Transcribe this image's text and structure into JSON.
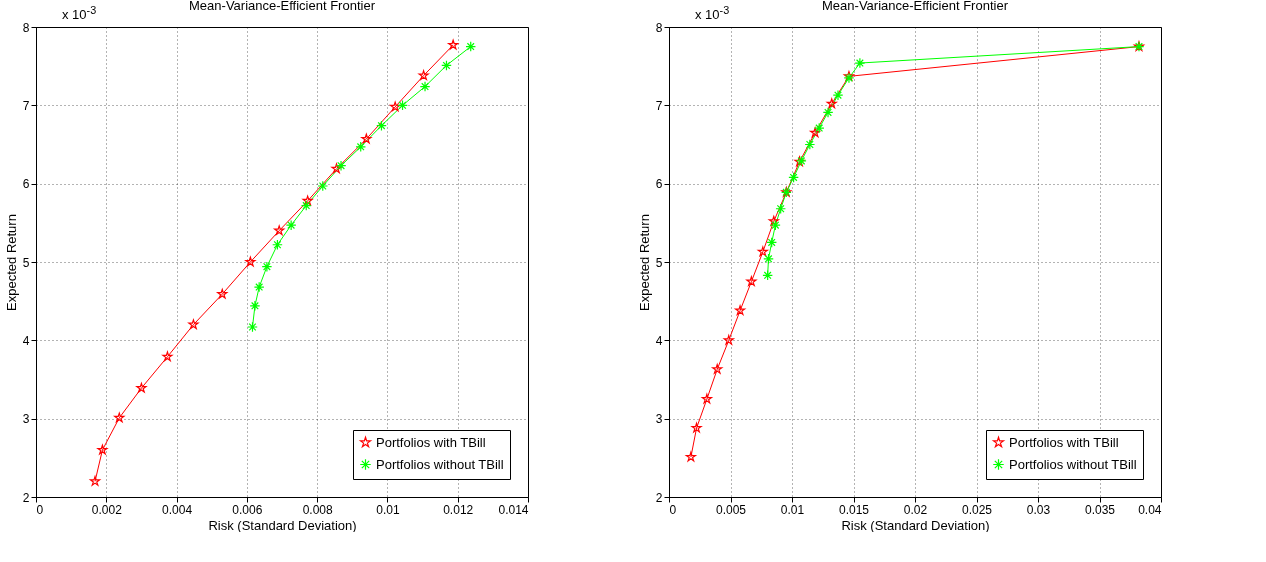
{
  "chart_data": [
    {
      "type": "line",
      "title": "Mean-Variance-Efficient Frontier",
      "xlabel": "Risk (Standard Deviation)",
      "ylabel": "Expected Return",
      "annotations": [
        "x 10$^{-3}$"
      ],
      "xlim": [
        0,
        0.014
      ],
      "xticks": [
        0,
        0.002,
        0.004,
        0.006,
        0.008,
        0.01,
        0.012,
        0.014
      ],
      "ylim": [
        2,
        8
      ],
      "yticks": [
        2,
        3,
        4,
        5,
        6,
        7,
        8
      ],
      "grid": true,
      "legend": "bottom right",
      "series": [
        {
          "name": "Portfolios with TBill",
          "color": "#ff0000",
          "marker": "star",
          "x": [
            0.00168,
            0.00189,
            0.00237,
            0.003,
            0.00374,
            0.00448,
            0.0053,
            0.0061,
            0.00692,
            0.00773,
            0.00855,
            0.0094,
            0.01022,
            0.01103,
            0.01187
          ],
          "values": [
            2.2,
            2.6,
            3.01,
            3.39,
            3.79,
            4.2,
            4.59,
            5.0,
            5.4,
            5.78,
            6.19,
            6.57,
            6.98,
            7.38,
            7.77
          ]
        },
        {
          "name": "Portfolios without TBill",
          "color": "#00ff00",
          "marker": "cross",
          "x": [
            0.00616,
            0.00623,
            0.00635,
            0.00657,
            0.00687,
            0.00726,
            0.00769,
            0.00816,
            0.00868,
            0.00924,
            0.00983,
            0.01043,
            0.01107,
            0.01168,
            0.01237
          ],
          "values": [
            4.17,
            4.44,
            4.68,
            4.94,
            5.22,
            5.47,
            5.72,
            5.97,
            6.23,
            6.47,
            6.74,
            7.0,
            7.24,
            7.51,
            7.75
          ]
        }
      ]
    },
    {
      "type": "line",
      "title": "Mean-Variance-Efficient Frontier",
      "xlabel": "Risk (Standard Deviation)",
      "ylabel": "Expected Return",
      "annotations": [
        "x 10$^{-3}$"
      ],
      "xlim": [
        0,
        0.04
      ],
      "xticks": [
        0,
        0.005,
        0.01,
        0.015,
        0.02,
        0.025,
        0.03,
        0.035,
        0.04
      ],
      "ylim": [
        2,
        8
      ],
      "yticks": [
        2,
        3,
        4,
        5,
        6,
        7,
        8
      ],
      "grid": true,
      "legend": "bottom right",
      "series": [
        {
          "name": "Portfolios with TBill",
          "color": "#ff0000",
          "marker": "star",
          "x": [
            0.00178,
            0.00224,
            0.00308,
            0.00392,
            0.00486,
            0.00578,
            0.0067,
            0.00763,
            0.00852,
            0.00954,
            0.01061,
            0.01188,
            0.01323,
            0.01463,
            0.03821
          ],
          "values": [
            2.51,
            2.88,
            3.25,
            3.63,
            4.0,
            4.38,
            4.75,
            5.13,
            5.52,
            5.89,
            6.28,
            6.65,
            7.02,
            7.37,
            7.75
          ]
        },
        {
          "name": "Portfolios without TBill",
          "color": "#00ff00",
          "marker": "cross",
          "x": [
            0.00802,
            0.00809,
            0.00835,
            0.00865,
            0.00908,
            0.00954,
            0.01013,
            0.01076,
            0.01145,
            0.01221,
            0.01293,
            0.01374,
            0.01463,
            0.01552,
            0.03821
          ],
          "values": [
            4.83,
            5.04,
            5.25,
            5.47,
            5.68,
            5.89,
            6.08,
            6.29,
            6.5,
            6.71,
            6.91,
            7.13,
            7.35,
            7.54,
            7.75
          ]
        }
      ]
    }
  ]
}
